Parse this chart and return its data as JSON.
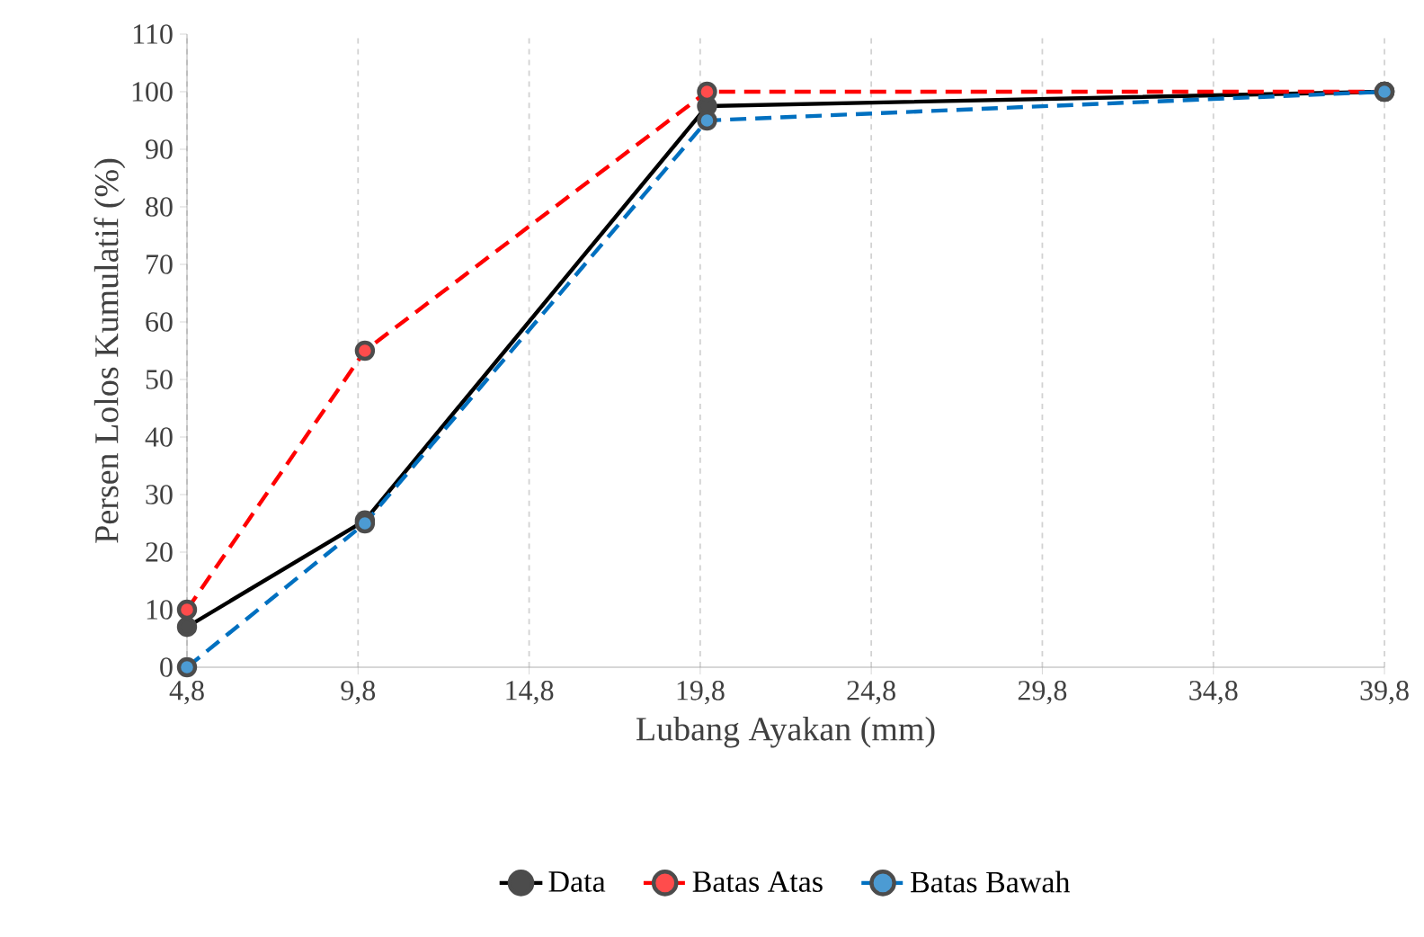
{
  "chart_data": {
    "type": "line",
    "xlabel": "Lubang Ayakan (mm)",
    "ylabel": "Persen Lolos Kumulatif (%)",
    "xlim": [
      4.8,
      39.8
    ],
    "xticks": [
      {
        "value": 4.8,
        "label": "4,8"
      },
      {
        "value": 9.8,
        "label": "9,8"
      },
      {
        "value": 14.8,
        "label": "14,8"
      },
      {
        "value": 19.8,
        "label": "19,8"
      },
      {
        "value": 24.8,
        "label": "24,8"
      },
      {
        "value": 29.8,
        "label": "29,8"
      },
      {
        "value": 34.8,
        "label": "34,8"
      },
      {
        "value": 39.8,
        "label": "39,8"
      }
    ],
    "ylim": [
      0,
      110
    ],
    "yticks": [
      0,
      10,
      20,
      30,
      40,
      50,
      60,
      70,
      80,
      90,
      100,
      110
    ],
    "x": [
      4.8,
      10,
      20,
      39.8
    ],
    "series": [
      {
        "name": "Data",
        "color": "#000000",
        "line_style": "solid",
        "values": [
          7,
          25.5,
          97.5,
          100
        ]
      },
      {
        "name": "Batas Atas",
        "color": "#ff0000",
        "line_style": "dashed",
        "values": [
          10,
          55,
          100,
          100
        ]
      },
      {
        "name": "Batas Bawah",
        "color": "#0070c0",
        "line_style": "dashed",
        "values": [
          0,
          25,
          95,
          100
        ]
      }
    ],
    "marker": "circle",
    "grid": "x",
    "legend": "bottom"
  }
}
